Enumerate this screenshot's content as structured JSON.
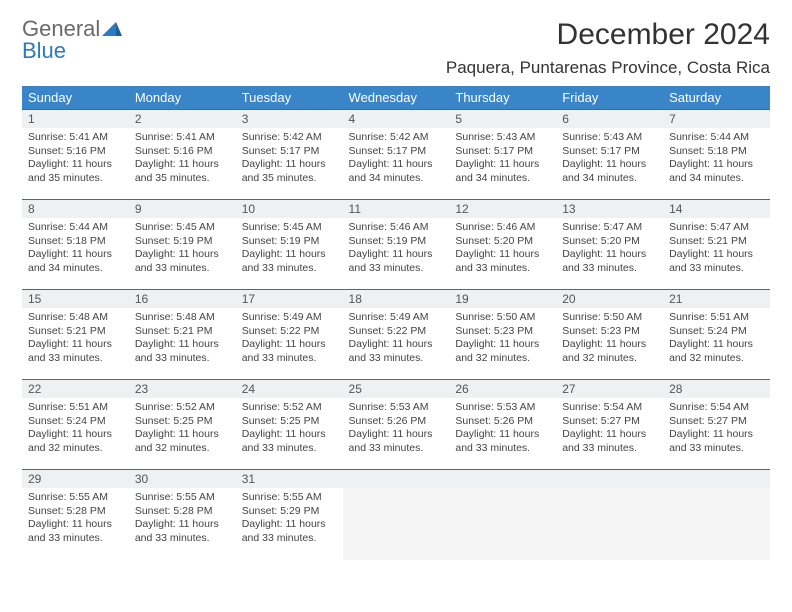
{
  "logo": {
    "word1": "General",
    "word2": "Blue"
  },
  "title": "December 2024",
  "location": "Paquera, Puntarenas Province, Costa Rica",
  "colors": {
    "header_bg": "#3a85c8",
    "header_text": "#ffffff",
    "row_border": "#2f6fa8",
    "daynum_bg": "#eef0f1",
    "logo_gray": "#6a6a6a",
    "logo_blue": "#2a7bbf"
  },
  "weekdays": [
    "Sunday",
    "Monday",
    "Tuesday",
    "Wednesday",
    "Thursday",
    "Friday",
    "Saturday"
  ],
  "weeks": [
    [
      {
        "n": "1",
        "sr": "Sunrise: 5:41 AM",
        "ss": "Sunset: 5:16 PM",
        "d1": "Daylight: 11 hours",
        "d2": "and 35 minutes."
      },
      {
        "n": "2",
        "sr": "Sunrise: 5:41 AM",
        "ss": "Sunset: 5:16 PM",
        "d1": "Daylight: 11 hours",
        "d2": "and 35 minutes."
      },
      {
        "n": "3",
        "sr": "Sunrise: 5:42 AM",
        "ss": "Sunset: 5:17 PM",
        "d1": "Daylight: 11 hours",
        "d2": "and 35 minutes."
      },
      {
        "n": "4",
        "sr": "Sunrise: 5:42 AM",
        "ss": "Sunset: 5:17 PM",
        "d1": "Daylight: 11 hours",
        "d2": "and 34 minutes."
      },
      {
        "n": "5",
        "sr": "Sunrise: 5:43 AM",
        "ss": "Sunset: 5:17 PM",
        "d1": "Daylight: 11 hours",
        "d2": "and 34 minutes."
      },
      {
        "n": "6",
        "sr": "Sunrise: 5:43 AM",
        "ss": "Sunset: 5:17 PM",
        "d1": "Daylight: 11 hours",
        "d2": "and 34 minutes."
      },
      {
        "n": "7",
        "sr": "Sunrise: 5:44 AM",
        "ss": "Sunset: 5:18 PM",
        "d1": "Daylight: 11 hours",
        "d2": "and 34 minutes."
      }
    ],
    [
      {
        "n": "8",
        "sr": "Sunrise: 5:44 AM",
        "ss": "Sunset: 5:18 PM",
        "d1": "Daylight: 11 hours",
        "d2": "and 34 minutes."
      },
      {
        "n": "9",
        "sr": "Sunrise: 5:45 AM",
        "ss": "Sunset: 5:19 PM",
        "d1": "Daylight: 11 hours",
        "d2": "and 33 minutes."
      },
      {
        "n": "10",
        "sr": "Sunrise: 5:45 AM",
        "ss": "Sunset: 5:19 PM",
        "d1": "Daylight: 11 hours",
        "d2": "and 33 minutes."
      },
      {
        "n": "11",
        "sr": "Sunrise: 5:46 AM",
        "ss": "Sunset: 5:19 PM",
        "d1": "Daylight: 11 hours",
        "d2": "and 33 minutes."
      },
      {
        "n": "12",
        "sr": "Sunrise: 5:46 AM",
        "ss": "Sunset: 5:20 PM",
        "d1": "Daylight: 11 hours",
        "d2": "and 33 minutes."
      },
      {
        "n": "13",
        "sr": "Sunrise: 5:47 AM",
        "ss": "Sunset: 5:20 PM",
        "d1": "Daylight: 11 hours",
        "d2": "and 33 minutes."
      },
      {
        "n": "14",
        "sr": "Sunrise: 5:47 AM",
        "ss": "Sunset: 5:21 PM",
        "d1": "Daylight: 11 hours",
        "d2": "and 33 minutes."
      }
    ],
    [
      {
        "n": "15",
        "sr": "Sunrise: 5:48 AM",
        "ss": "Sunset: 5:21 PM",
        "d1": "Daylight: 11 hours",
        "d2": "and 33 minutes."
      },
      {
        "n": "16",
        "sr": "Sunrise: 5:48 AM",
        "ss": "Sunset: 5:21 PM",
        "d1": "Daylight: 11 hours",
        "d2": "and 33 minutes."
      },
      {
        "n": "17",
        "sr": "Sunrise: 5:49 AM",
        "ss": "Sunset: 5:22 PM",
        "d1": "Daylight: 11 hours",
        "d2": "and 33 minutes."
      },
      {
        "n": "18",
        "sr": "Sunrise: 5:49 AM",
        "ss": "Sunset: 5:22 PM",
        "d1": "Daylight: 11 hours",
        "d2": "and 33 minutes."
      },
      {
        "n": "19",
        "sr": "Sunrise: 5:50 AM",
        "ss": "Sunset: 5:23 PM",
        "d1": "Daylight: 11 hours",
        "d2": "and 32 minutes."
      },
      {
        "n": "20",
        "sr": "Sunrise: 5:50 AM",
        "ss": "Sunset: 5:23 PM",
        "d1": "Daylight: 11 hours",
        "d2": "and 32 minutes."
      },
      {
        "n": "21",
        "sr": "Sunrise: 5:51 AM",
        "ss": "Sunset: 5:24 PM",
        "d1": "Daylight: 11 hours",
        "d2": "and 32 minutes."
      }
    ],
    [
      {
        "n": "22",
        "sr": "Sunrise: 5:51 AM",
        "ss": "Sunset: 5:24 PM",
        "d1": "Daylight: 11 hours",
        "d2": "and 32 minutes."
      },
      {
        "n": "23",
        "sr": "Sunrise: 5:52 AM",
        "ss": "Sunset: 5:25 PM",
        "d1": "Daylight: 11 hours",
        "d2": "and 32 minutes."
      },
      {
        "n": "24",
        "sr": "Sunrise: 5:52 AM",
        "ss": "Sunset: 5:25 PM",
        "d1": "Daylight: 11 hours",
        "d2": "and 33 minutes."
      },
      {
        "n": "25",
        "sr": "Sunrise: 5:53 AM",
        "ss": "Sunset: 5:26 PM",
        "d1": "Daylight: 11 hours",
        "d2": "and 33 minutes."
      },
      {
        "n": "26",
        "sr": "Sunrise: 5:53 AM",
        "ss": "Sunset: 5:26 PM",
        "d1": "Daylight: 11 hours",
        "d2": "and 33 minutes."
      },
      {
        "n": "27",
        "sr": "Sunrise: 5:54 AM",
        "ss": "Sunset: 5:27 PM",
        "d1": "Daylight: 11 hours",
        "d2": "and 33 minutes."
      },
      {
        "n": "28",
        "sr": "Sunrise: 5:54 AM",
        "ss": "Sunset: 5:27 PM",
        "d1": "Daylight: 11 hours",
        "d2": "and 33 minutes."
      }
    ],
    [
      {
        "n": "29",
        "sr": "Sunrise: 5:55 AM",
        "ss": "Sunset: 5:28 PM",
        "d1": "Daylight: 11 hours",
        "d2": "and 33 minutes."
      },
      {
        "n": "30",
        "sr": "Sunrise: 5:55 AM",
        "ss": "Sunset: 5:28 PM",
        "d1": "Daylight: 11 hours",
        "d2": "and 33 minutes."
      },
      {
        "n": "31",
        "sr": "Sunrise: 5:55 AM",
        "ss": "Sunset: 5:29 PM",
        "d1": "Daylight: 11 hours",
        "d2": "and 33 minutes."
      },
      null,
      null,
      null,
      null
    ]
  ]
}
